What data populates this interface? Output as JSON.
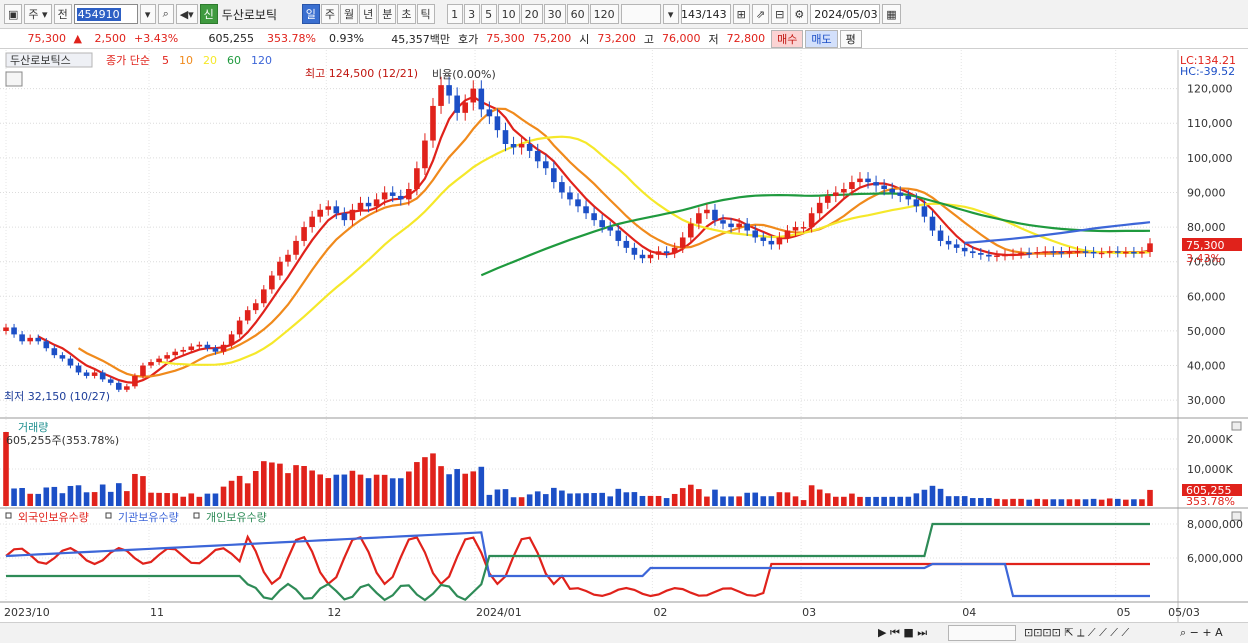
{
  "toolbar": {
    "period_sel": "주",
    "mode_sel": "전",
    "code": "454910",
    "credit_badge": "신",
    "stock_name": "두산로보틱",
    "tabs": [
      "일",
      "주",
      "월",
      "년",
      "분",
      "초",
      "틱"
    ],
    "active_tab": "일",
    "periods": [
      "1",
      "3",
      "5",
      "10",
      "20",
      "30",
      "60",
      "120"
    ],
    "count": "143/143",
    "date": "2024/05/03"
  },
  "quote": {
    "price": "75,300",
    "change": "2,500",
    "change_pct": "+3.43%",
    "volume": "605,255",
    "vol_ratio": "353.78%",
    "turnover": "0.93%",
    "amount": "45,357백만",
    "ask_label": "호가",
    "ask": "75,300",
    "bid": "75,200",
    "open_label": "시",
    "open": "73,200",
    "high_label": "고",
    "high": "76,000",
    "low_label": "저",
    "low": "72,800",
    "buy_label": "매수",
    "sell_label": "매도",
    "eval_label": "평"
  },
  "colors": {
    "up": "#e0221b",
    "down": "#1c4fc6",
    "ma5": "#e0221b",
    "ma10": "#f08a1c",
    "ma20": "#f5e82a",
    "ma60": "#1f9a3e",
    "ma120": "#3d66d8",
    "foreign": "#e0221b",
    "institution": "#3d66d8",
    "individual": "#2e8b57"
  },
  "chart_data": {
    "type": "candlestick",
    "legend": {
      "stock": "두산로보틱스",
      "ma_label": "종가 단순",
      "ma_periods": [
        "5",
        "10",
        "20",
        "60",
        "120"
      ]
    },
    "annotations": {
      "max": "최고 124,500 (12/21)",
      "min": "최저 32,150 (10/27)",
      "ratio": "비율(0.00%)",
      "lc": "LC:134.21",
      "hc": "HC:-39.52"
    },
    "price_tag": "75,300",
    "pct_tag": "3.43%",
    "yaxis": [
      "120,000",
      "110,000",
      "100,000",
      "90,000",
      "80,000",
      "70,000",
      "60,000",
      "50,000",
      "40,000",
      "30,000"
    ],
    "ylim": [
      26000,
      130000
    ],
    "closes": [
      51000,
      49000,
      47000,
      48000,
      47000,
      45000,
      43000,
      42000,
      40000,
      38000,
      37000,
      38000,
      36000,
      35000,
      33000,
      34000,
      37000,
      40000,
      41000,
      42000,
      43000,
      44000,
      44500,
      45500,
      46000,
      45000,
      44000,
      46000,
      49000,
      53000,
      56000,
      58000,
      62000,
      66000,
      70000,
      72000,
      76000,
      80000,
      83000,
      85000,
      86000,
      84000,
      82000,
      85000,
      87000,
      86000,
      88000,
      90000,
      89000,
      88000,
      91000,
      97000,
      105000,
      115000,
      121000,
      118000,
      113000,
      116000,
      120000,
      114000,
      112000,
      108000,
      104000,
      103000,
      104000,
      102000,
      99000,
      97000,
      93000,
      90000,
      88000,
      86000,
      84000,
      82000,
      80000,
      79000,
      76000,
      74000,
      72000,
      71000,
      72000,
      73000,
      72500,
      74000,
      77000,
      81000,
      84000,
      85000,
      82000,
      81000,
      80000,
      81000,
      79000,
      77000,
      76000,
      75000,
      77000,
      79000,
      80000,
      80000,
      84000,
      87000,
      89000,
      90000,
      91000,
      93000,
      94000,
      93000,
      92000,
      91000,
      90000,
      89000,
      88000,
      86000,
      83000,
      79000,
      76000,
      75000,
      74000,
      73000,
      72500,
      72000,
      71500,
      71800,
      72000,
      72300,
      72600,
      72500,
      72800,
      73000,
      72800,
      72600,
      72800,
      73000,
      72800,
      72500,
      72600,
      73000,
      72700,
      72800,
      72600,
      72800,
      75300
    ],
    "volume": {
      "label": "거래량",
      "value": "605,255주(353.78%)",
      "yaxis": [
        "20,000K",
        "10,000K"
      ],
      "tag": "605,255",
      "tag_pct": "353.78%"
    },
    "holdings": {
      "series": [
        "외국인보유수량",
        "기관보유수량",
        "개인보유수량"
      ],
      "yaxis": [
        "8,000,000",
        "6,000,000"
      ]
    },
    "xaxis": [
      "2023/10",
      "11",
      "12",
      "2024/01",
      "02",
      "03",
      "04",
      "05",
      "05/03"
    ]
  }
}
